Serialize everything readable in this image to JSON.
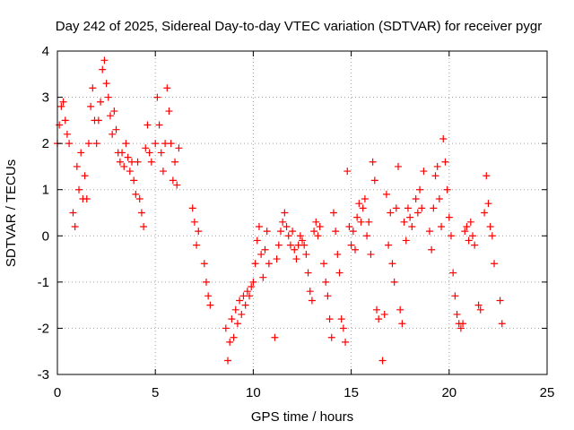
{
  "chart_data": {
    "type": "scatter",
    "title": "Day 242 of 2025, Sidereal Day-to-day VTEC variation (SDTVAR) for receiver pygr",
    "xlabel": "GPS time / hours",
    "ylabel": "SDTVAR / TECUs",
    "xlim": [
      0,
      25
    ],
    "ylim": [
      -3,
      4
    ],
    "x_ticks": [
      "0",
      "5",
      "10",
      "15",
      "20",
      "25"
    ],
    "y_ticks": [
      "-3",
      "-2",
      "-1",
      "0",
      "1",
      "2",
      "3",
      "4"
    ],
    "grid": true,
    "marker": "+",
    "series": [
      {
        "name": "SDTVAR",
        "color": "#ff0000",
        "points": [
          [
            0.0,
            2.0
          ],
          [
            0.1,
            2.4
          ],
          [
            0.2,
            2.8
          ],
          [
            0.3,
            2.9
          ],
          [
            0.4,
            2.5
          ],
          [
            0.5,
            2.2
          ],
          [
            0.6,
            2.0
          ],
          [
            0.8,
            0.5
          ],
          [
            0.9,
            0.2
          ],
          [
            1.0,
            1.5
          ],
          [
            1.1,
            1.0
          ],
          [
            1.2,
            1.8
          ],
          [
            1.3,
            0.8
          ],
          [
            1.4,
            1.3
          ],
          [
            1.5,
            0.8
          ],
          [
            1.6,
            2.0
          ],
          [
            1.7,
            2.8
          ],
          [
            1.8,
            3.2
          ],
          [
            1.9,
            2.5
          ],
          [
            2.0,
            2.0
          ],
          [
            2.1,
            2.5
          ],
          [
            2.2,
            2.9
          ],
          [
            2.3,
            3.6
          ],
          [
            2.4,
            3.8
          ],
          [
            2.5,
            3.3
          ],
          [
            2.6,
            3.0
          ],
          [
            2.7,
            2.6
          ],
          [
            2.8,
            2.2
          ],
          [
            2.9,
            2.7
          ],
          [
            3.0,
            2.3
          ],
          [
            3.1,
            1.8
          ],
          [
            3.2,
            1.6
          ],
          [
            3.3,
            1.8
          ],
          [
            3.4,
            1.5
          ],
          [
            3.5,
            2.0
          ],
          [
            3.6,
            1.7
          ],
          [
            3.7,
            1.4
          ],
          [
            3.8,
            1.6
          ],
          [
            3.9,
            1.2
          ],
          [
            4.0,
            0.9
          ],
          [
            4.1,
            1.6
          ],
          [
            4.2,
            0.8
          ],
          [
            4.3,
            0.5
          ],
          [
            4.4,
            0.2
          ],
          [
            4.5,
            1.9
          ],
          [
            4.6,
            2.4
          ],
          [
            4.7,
            1.8
          ],
          [
            4.8,
            1.6
          ],
          [
            5.0,
            2.0
          ],
          [
            5.1,
            3.0
          ],
          [
            5.2,
            2.4
          ],
          [
            5.3,
            1.8
          ],
          [
            5.4,
            1.4
          ],
          [
            5.5,
            2.0
          ],
          [
            5.6,
            3.2
          ],
          [
            5.7,
            2.7
          ],
          [
            5.8,
            2.0
          ],
          [
            5.9,
            1.2
          ],
          [
            6.0,
            1.6
          ],
          [
            6.1,
            1.1
          ],
          [
            6.2,
            1.9
          ],
          [
            6.9,
            0.6
          ],
          [
            7.0,
            0.3
          ],
          [
            7.1,
            -0.2
          ],
          [
            7.2,
            0.1
          ],
          [
            7.5,
            -0.6
          ],
          [
            7.6,
            -1.0
          ],
          [
            7.7,
            -1.3
          ],
          [
            7.8,
            -1.5
          ],
          [
            8.6,
            -2.0
          ],
          [
            8.7,
            -2.7
          ],
          [
            8.8,
            -2.3
          ],
          [
            8.9,
            -1.8
          ],
          [
            9.0,
            -2.2
          ],
          [
            9.1,
            -1.6
          ],
          [
            9.2,
            -1.9
          ],
          [
            9.3,
            -1.4
          ],
          [
            9.4,
            -1.7
          ],
          [
            9.5,
            -1.3
          ],
          [
            9.6,
            -1.5
          ],
          [
            9.7,
            -1.2
          ],
          [
            9.8,
            -1.3
          ],
          [
            9.9,
            -1.1
          ],
          [
            10.0,
            -1.0
          ],
          [
            10.1,
            -0.6
          ],
          [
            10.2,
            -0.1
          ],
          [
            10.3,
            0.2
          ],
          [
            10.4,
            -0.4
          ],
          [
            10.5,
            -0.9
          ],
          [
            10.6,
            -0.3
          ],
          [
            10.7,
            0.1
          ],
          [
            10.8,
            -0.6
          ],
          [
            11.1,
            -2.2
          ],
          [
            11.2,
            -0.5
          ],
          [
            11.3,
            -0.2
          ],
          [
            11.4,
            0.1
          ],
          [
            11.5,
            0.3
          ],
          [
            11.6,
            0.5
          ],
          [
            11.7,
            0.2
          ],
          [
            11.8,
            0.0
          ],
          [
            11.9,
            -0.2
          ],
          [
            12.0,
            0.1
          ],
          [
            12.1,
            -0.3
          ],
          [
            12.2,
            -0.5
          ],
          [
            12.3,
            -0.2
          ],
          [
            12.4,
            0.0
          ],
          [
            12.5,
            -0.1
          ],
          [
            12.6,
            -0.2
          ],
          [
            12.7,
            -0.4
          ],
          [
            12.8,
            -0.8
          ],
          [
            12.9,
            -1.2
          ],
          [
            13.0,
            -1.4
          ],
          [
            13.1,
            0.1
          ],
          [
            13.2,
            0.3
          ],
          [
            13.3,
            0.0
          ],
          [
            13.4,
            0.2
          ],
          [
            13.6,
            -0.6
          ],
          [
            13.7,
            -1.0
          ],
          [
            13.8,
            -1.3
          ],
          [
            13.9,
            -1.8
          ],
          [
            14.0,
            -2.2
          ],
          [
            14.1,
            0.5
          ],
          [
            14.2,
            0.1
          ],
          [
            14.3,
            -0.4
          ],
          [
            14.4,
            -0.8
          ],
          [
            14.5,
            -1.8
          ],
          [
            14.6,
            -2.0
          ],
          [
            14.7,
            -2.3
          ],
          [
            14.8,
            1.4
          ],
          [
            14.9,
            0.2
          ],
          [
            15.0,
            -0.2
          ],
          [
            15.1,
            0.1
          ],
          [
            15.2,
            -0.3
          ],
          [
            15.3,
            0.4
          ],
          [
            15.4,
            0.7
          ],
          [
            15.5,
            0.3
          ],
          [
            15.6,
            0.6
          ],
          [
            15.7,
            0.8
          ],
          [
            15.8,
            0.0
          ],
          [
            15.9,
            0.3
          ],
          [
            16.0,
            -0.4
          ],
          [
            16.1,
            1.6
          ],
          [
            16.2,
            1.2
          ],
          [
            16.3,
            -1.6
          ],
          [
            16.4,
            -1.8
          ],
          [
            16.6,
            -2.7
          ],
          [
            16.7,
            -1.7
          ],
          [
            16.8,
            0.9
          ],
          [
            16.9,
            -0.2
          ],
          [
            17.0,
            0.5
          ],
          [
            17.1,
            -0.6
          ],
          [
            17.2,
            -1.0
          ],
          [
            17.3,
            0.6
          ],
          [
            17.4,
            1.5
          ],
          [
            17.5,
            -1.6
          ],
          [
            17.6,
            -1.9
          ],
          [
            17.7,
            0.3
          ],
          [
            17.8,
            -0.1
          ],
          [
            17.9,
            0.6
          ],
          [
            18.0,
            0.4
          ],
          [
            18.1,
            0.2
          ],
          [
            18.3,
            0.8
          ],
          [
            18.4,
            0.5
          ],
          [
            18.5,
            1.0
          ],
          [
            18.6,
            0.6
          ],
          [
            18.7,
            1.4
          ],
          [
            19.0,
            0.1
          ],
          [
            19.1,
            -0.3
          ],
          [
            19.2,
            0.6
          ],
          [
            19.3,
            1.3
          ],
          [
            19.4,
            1.5
          ],
          [
            19.5,
            0.8
          ],
          [
            19.6,
            0.2
          ],
          [
            19.7,
            2.1
          ],
          [
            19.8,
            1.6
          ],
          [
            19.9,
            1.0
          ],
          [
            20.0,
            0.4
          ],
          [
            20.1,
            0.0
          ],
          [
            20.2,
            -0.8
          ],
          [
            20.3,
            -1.3
          ],
          [
            20.4,
            -1.7
          ],
          [
            20.5,
            -1.9
          ],
          [
            20.6,
            -2.0
          ],
          [
            20.7,
            -1.9
          ],
          [
            20.8,
            0.1
          ],
          [
            20.9,
            0.2
          ],
          [
            21.0,
            -0.1
          ],
          [
            21.1,
            0.3
          ],
          [
            21.2,
            0.0
          ],
          [
            21.3,
            -0.2
          ],
          [
            21.5,
            -1.5
          ],
          [
            21.6,
            -1.6
          ],
          [
            21.8,
            0.5
          ],
          [
            21.9,
            1.3
          ],
          [
            22.0,
            0.7
          ],
          [
            22.1,
            0.2
          ],
          [
            22.2,
            0.0
          ],
          [
            22.3,
            -0.6
          ],
          [
            22.6,
            -1.4
          ],
          [
            22.7,
            -1.9
          ]
        ]
      }
    ]
  }
}
